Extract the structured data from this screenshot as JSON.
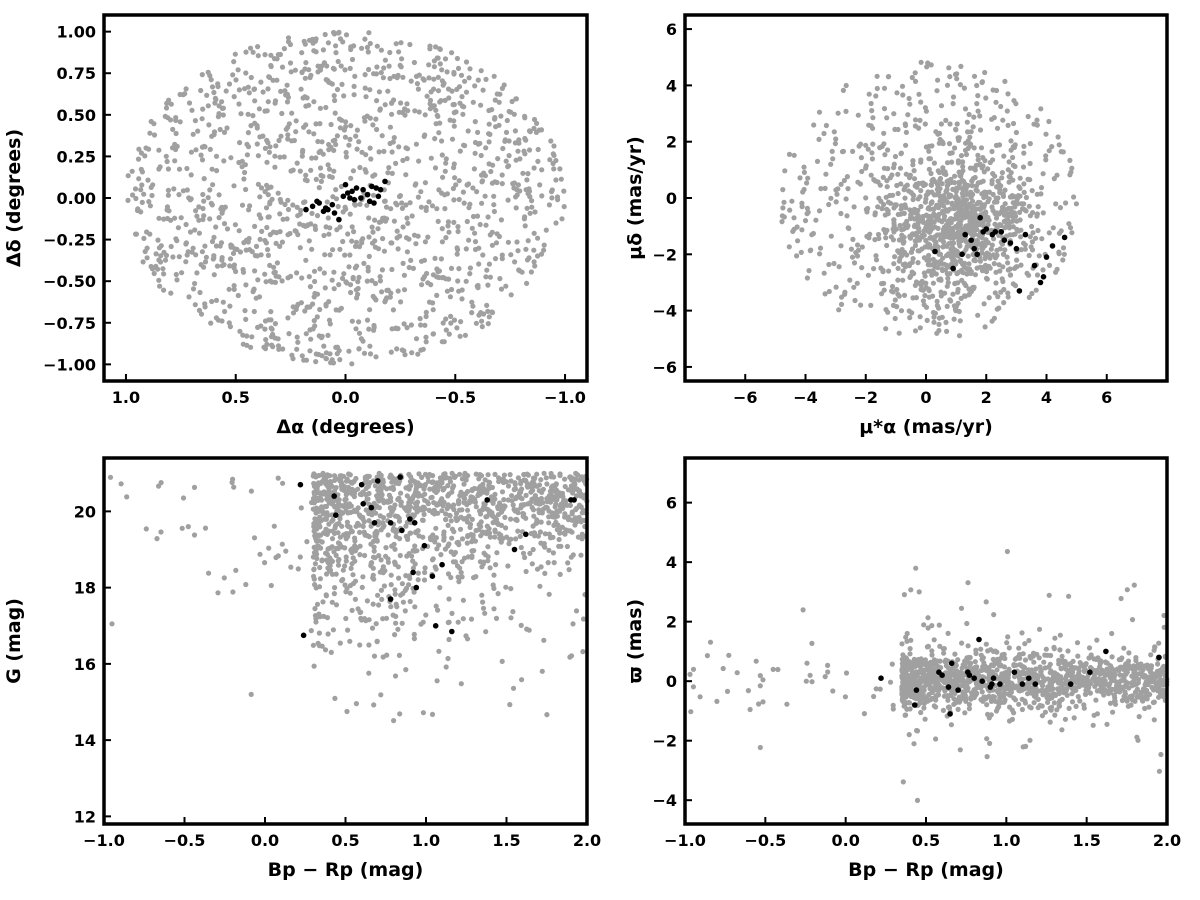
{
  "chart_data": [
    {
      "type": "scatter",
      "xlabel": "Δα (degrees)",
      "ylabel": "Δδ (degrees)",
      "xlim": [
        1.1,
        -1.1
      ],
      "ylim": [
        -1.1,
        1.1
      ],
      "x_inverted": true,
      "xticks": [
        1.0,
        0.5,
        0.0,
        -0.5,
        -1.0
      ],
      "xtick_labels": [
        "1.0",
        "0.5",
        "0.0",
        "−0.5",
        "−1.0"
      ],
      "yticks": [
        1.0,
        0.75,
        0.5,
        0.25,
        0.0,
        -0.25,
        -0.5,
        -0.75,
        -1.0
      ],
      "ytick_labels": [
        "1.00",
        "0.75",
        "0.50",
        "0.25",
        "0.00",
        "−0.25",
        "−0.50",
        "−0.75",
        "−1.00"
      ],
      "grid": false,
      "background": {
        "description": "dense gray field-star cloud filling a circle of radius ~1.0 deg",
        "color": "#a0a0a0",
        "approx_points": 1400
      },
      "series": [
        {
          "color": "#000000",
          "x": [
            0.15,
            0.12,
            0.08,
            0.05,
            0.03,
            0.01,
            -0.01,
            -0.03,
            -0.05,
            -0.08,
            -0.1,
            -0.12,
            -0.14,
            -0.16,
            -0.18,
            0.18,
            0.13,
            0.09,
            0.06,
            0.0,
            -0.04,
            -0.07,
            -0.11,
            -0.13,
            -0.15,
            0.1,
            -0.02
          ],
          "y": [
            -0.05,
            -0.03,
            -0.07,
            -0.09,
            -0.13,
            0.01,
            0.03,
            0.04,
            0.06,
            0.05,
            0.02,
            0.07,
            0.06,
            0.05,
            0.1,
            -0.07,
            -0.02,
            -0.06,
            -0.04,
            0.08,
            -0.01,
            0.0,
            -0.02,
            -0.03,
            0.01,
            -0.08,
            0.0
          ]
        }
      ]
    },
    {
      "type": "scatter",
      "xlabel": "μ*α  (mas/yr)",
      "ylabel": "μδ (mas/yr)",
      "xlim": [
        -8,
        8
      ],
      "ylim": [
        -6.5,
        6.5
      ],
      "xticks": [
        -6,
        -4,
        -2,
        0,
        2,
        4,
        6
      ],
      "xtick_labels": [
        "−6",
        "−4",
        "−2",
        "0",
        "2",
        "4",
        "6"
      ],
      "yticks": [
        -6,
        -4,
        -2,
        0,
        2,
        4,
        6
      ],
      "ytick_labels": [
        "−6",
        "−4",
        "−2",
        "0",
        "2",
        "4",
        "6"
      ],
      "grid": false,
      "background": {
        "description": "gray field-star cloud truncated at radius ~5 mas/yr around (0,0), dense blob near (1,-0.8)",
        "color": "#a0a0a0",
        "approx_points": 1400
      },
      "series": [
        {
          "color": "#000000",
          "x": [
            1.8,
            2.0,
            2.2,
            1.5,
            1.3,
            1.7,
            2.5,
            2.8,
            3.0,
            3.3,
            3.6,
            3.8,
            4.0,
            4.2,
            4.6,
            0.3,
            0.9,
            1.2,
            2.3,
            2.6,
            1.6,
            1.9,
            3.9,
            3.1
          ],
          "y": [
            -0.7,
            -1.1,
            -1.3,
            -1.5,
            -1.3,
            -2.0,
            -1.2,
            -1.6,
            -1.8,
            -1.3,
            -2.4,
            -3.0,
            -2.1,
            -1.7,
            -1.4,
            -1.9,
            -2.5,
            -2.0,
            -1.2,
            -1.5,
            -1.8,
            -1.2,
            -2.8,
            -3.3
          ]
        }
      ]
    },
    {
      "type": "scatter",
      "xlabel": "Bp − Rp (mag)",
      "ylabel": "G (mag)",
      "xlim": [
        -1.0,
        2.0
      ],
      "ylim": [
        11.8,
        21.4
      ],
      "y_inverted": false,
      "xticks": [
        -1.0,
        -0.5,
        0.0,
        0.5,
        1.0,
        1.5,
        2.0
      ],
      "xtick_labels": [
        "−1.0",
        "−0.5",
        "0.0",
        "0.5",
        "1.0",
        "1.5",
        "2.0"
      ],
      "yticks": [
        12,
        14,
        16,
        18,
        20
      ],
      "ytick_labels": [
        "12",
        "14",
        "16",
        "18",
        "20"
      ],
      "grid": false,
      "background": {
        "description": "gray color-magnitude field population, densest at G 19-21 and Bp-Rp 0.4-1.0, tail to bright red",
        "color": "#a0a0a0",
        "approx_points": 1400
      },
      "series": [
        {
          "color": "#000000",
          "x": [
            0.22,
            0.43,
            0.6,
            0.66,
            0.7,
            0.84,
            0.9,
            0.93,
            0.44,
            0.61,
            0.68,
            0.78,
            0.85,
            0.92,
            0.99,
            0.94,
            1.04,
            1.1,
            0.78,
            1.06,
            1.16,
            0.24,
            1.38,
            1.55,
            1.62,
            1.92,
            1.9
          ],
          "y": [
            20.7,
            20.4,
            20.7,
            20.1,
            20.8,
            20.9,
            19.8,
            19.7,
            19.9,
            20.2,
            19.7,
            17.7,
            19.5,
            18.4,
            19.1,
            18.0,
            18.3,
            18.6,
            19.7,
            17.0,
            16.85,
            16.75,
            20.3,
            19.0,
            19.4,
            20.3,
            20.3
          ]
        }
      ]
    },
    {
      "type": "scatter",
      "xlabel": "Bp − Rp (mag)",
      "ylabel": "ϖ (mas)",
      "xlim": [
        -1.0,
        2.0
      ],
      "ylim": [
        -4.8,
        7.5
      ],
      "xticks": [
        -1.0,
        -0.5,
        0.0,
        0.5,
        1.0,
        1.5,
        2.0
      ],
      "xtick_labels": [
        "−1.0",
        "−0.5",
        "0.0",
        "0.5",
        "1.0",
        "1.5",
        "2.0"
      ],
      "yticks": [
        -4,
        -2,
        0,
        2,
        4,
        6
      ],
      "ytick_labels": [
        "−4",
        "−2",
        "0",
        "2",
        "4",
        "6"
      ],
      "grid": false,
      "background": {
        "description": "gray band of parallaxes near 0 mas spanning Bp-Rp 0.4-2.0, widest near 0.6-0.9",
        "color": "#a0a0a0",
        "approx_points": 1400
      },
      "series": [
        {
          "color": "#000000",
          "x": [
            0.22,
            0.43,
            0.44,
            0.58,
            0.6,
            0.65,
            0.66,
            0.7,
            0.76,
            0.8,
            0.83,
            0.85,
            0.9,
            0.91,
            0.92,
            0.96,
            1.05,
            1.1,
            1.14,
            1.18,
            1.4,
            1.52,
            1.62,
            1.95,
            0.64,
            0.77
          ],
          "y": [
            0.1,
            -0.8,
            -0.3,
            0.3,
            0.2,
            -1.1,
            0.6,
            -0.3,
            0.3,
            0.1,
            1.4,
            0.0,
            -0.2,
            -0.1,
            0.1,
            -0.1,
            0.3,
            -0.1,
            0.1,
            -0.1,
            -0.1,
            0.3,
            1.0,
            0.8,
            -0.2,
            0.2
          ]
        }
      ]
    }
  ]
}
